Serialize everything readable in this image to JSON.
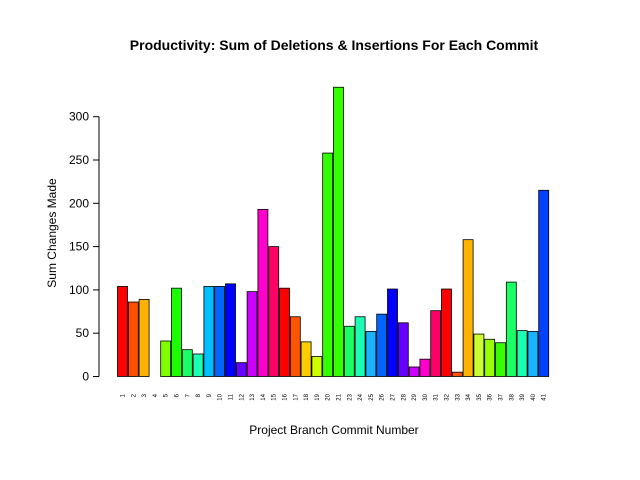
{
  "chart_data": {
    "type": "bar",
    "title": "Productivity: Sum of Deletions & Insertions For Each Commit",
    "xlabel": "Project Branch Commit Number",
    "ylabel": "Sum Changes Made",
    "ylim": [
      0,
      335
    ],
    "yticks": [
      0,
      50,
      100,
      150,
      200,
      250,
      300
    ],
    "grid": false,
    "categories": [
      "1",
      "2",
      "3",
      "4",
      "5",
      "6",
      "7",
      "8",
      "9",
      "10",
      "11",
      "12",
      "13",
      "14",
      "15",
      "16",
      "17",
      "18",
      "19",
      "20",
      "21",
      "23",
      "24",
      "25",
      "26",
      "27",
      "28",
      "29",
      "30",
      "31",
      "32",
      "33",
      "34",
      "35",
      "36",
      "37",
      "38",
      "39",
      "40",
      "41"
    ],
    "values": [
      104,
      86,
      89,
      0,
      41,
      102,
      31,
      26,
      104,
      104,
      107,
      16,
      98,
      193,
      150,
      102,
      69,
      40,
      23,
      258,
      334,
      58,
      69,
      52,
      72,
      101,
      62,
      11,
      20,
      76,
      101,
      5,
      158,
      49,
      43,
      39,
      109,
      53,
      52,
      215
    ],
    "colors": [
      "#FF0000",
      "#FF4D00",
      "#FFB300",
      "#FFE600",
      "#80FF00",
      "#1AFF00",
      "#1AFF66",
      "#1AFFB3",
      "#00BFFF",
      "#0066FF",
      "#0000FF",
      "#6600FF",
      "#CC00FF",
      "#FF00CC",
      "#FF0066",
      "#FF0000",
      "#FF5500",
      "#FFCC00",
      "#CCFF00",
      "#33FF00",
      "#33FF00",
      "#1AFF66",
      "#1AFFB3",
      "#1AB3FF",
      "#0066FF",
      "#0000FF",
      "#6600FF",
      "#CC00FF",
      "#FF00CC",
      "#FF0066",
      "#FF0000",
      "#FF5500",
      "#FFB300",
      "#CCFF33",
      "#99FF00",
      "#33FF00",
      "#1AFF66",
      "#1AFFB3",
      "#1AB3FF",
      "#0040FF"
    ]
  }
}
